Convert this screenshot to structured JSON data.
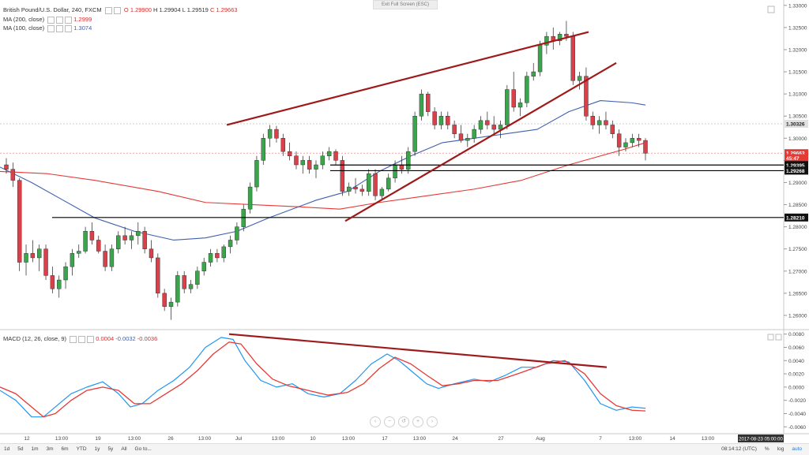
{
  "header": {
    "symbol": "British Pound/U.S. Dollar, 240, FXCM",
    "ohlc": {
      "o": "O 1.29900",
      "h": "H 1.29904",
      "l": "L 1.29519",
      "c": "C 1.29663"
    },
    "exit_fullscreen": "Exit Full Screen (ESC)"
  },
  "indicators": [
    {
      "label": "MA (200, close)",
      "value": "1.2999",
      "color": "#d32f2f"
    },
    {
      "label": "MA (100, close)",
      "value": "1.3074",
      "color": "#3a5fb5"
    }
  ],
  "macd": {
    "label": "MACD (12, 26, close, 9)",
    "values": [
      "0.0004",
      "-0.0032",
      "-0.0036"
    ],
    "colors": [
      "#d32f2f",
      "#3a5fb5",
      "#d32f2f"
    ]
  },
  "price_axis": {
    "ticks": [
      "1.33000",
      "1.32500",
      "1.32000",
      "1.31500",
      "1.31000",
      "1.30500",
      "1.30000",
      "1.29500",
      "1.29000",
      "1.28500",
      "1.28000",
      "1.27500",
      "1.27000",
      "1.26500",
      "1.26000"
    ],
    "badges": [
      {
        "text": "1.30326",
        "value": 1.30326,
        "kind": "light"
      },
      {
        "text": "1.29663",
        "value": 1.29663,
        "kind": "red"
      },
      {
        "text": "45:47",
        "value": 1.2955,
        "kind": "red"
      },
      {
        "text": "1.29395",
        "value": 1.29395,
        "kind": "dark"
      },
      {
        "text": "1.29268",
        "value": 1.29268,
        "kind": "dark"
      },
      {
        "text": "1.28210",
        "value": 1.2821,
        "kind": "dark"
      }
    ]
  },
  "macd_axis": {
    "ticks": [
      "0.0080",
      "0.0060",
      "0.0040",
      "0.0020",
      "0.0000",
      "-0.0020",
      "-0.0040",
      "-0.0060"
    ]
  },
  "time_axis": {
    "labels": [
      {
        "t": "12",
        "x": 34
      },
      {
        "t": "13:00",
        "x": 78
      },
      {
        "t": "19",
        "x": 124
      },
      {
        "t": "13:00",
        "x": 170
      },
      {
        "t": "26",
        "x": 216
      },
      {
        "t": "13:00",
        "x": 259
      },
      {
        "t": "Jul",
        "x": 302
      },
      {
        "t": "13:00",
        "x": 352
      },
      {
        "t": "10",
        "x": 396
      },
      {
        "t": "13:00",
        "x": 441
      },
      {
        "t": "17",
        "x": 487
      },
      {
        "t": "13:00",
        "x": 531
      },
      {
        "t": "24",
        "x": 576
      },
      {
        "t": "27",
        "x": 634
      },
      {
        "t": "Aug",
        "x": 684
      },
      {
        "t": "7",
        "x": 760
      },
      {
        "t": "13:00",
        "x": 804
      },
      {
        "t": "14",
        "x": 851
      },
      {
        "t": "13:00",
        "x": 896
      }
    ],
    "date_badge": "2017-08-23 05:00:00"
  },
  "bottom_bar": {
    "timeframes": [
      "1d",
      "5d",
      "1m",
      "3m",
      "6m",
      "YTD",
      "1y",
      "5y",
      "All",
      "Go to..."
    ],
    "right": [
      "08:14:12 (UTC)",
      "%",
      "log",
      "auto"
    ]
  },
  "chart_data": {
    "type": "candlestick",
    "ylim": [
      1.2575,
      1.3305
    ],
    "macd_ylim": [
      -0.0068,
      0.0082
    ],
    "candles": [
      [
        1.294,
        1.2955,
        1.292,
        1.293
      ],
      [
        1.293,
        1.2945,
        1.289,
        1.2905
      ],
      [
        1.2905,
        1.291,
        1.27,
        1.272
      ],
      [
        1.272,
        1.276,
        1.269,
        1.274
      ],
      [
        1.274,
        1.277,
        1.272,
        1.273
      ],
      [
        1.273,
        1.276,
        1.27,
        1.275
      ],
      [
        1.275,
        1.276,
        1.268,
        1.269
      ],
      [
        1.269,
        1.271,
        1.265,
        1.266
      ],
      [
        1.266,
        1.269,
        1.264,
        1.268
      ],
      [
        1.268,
        1.272,
        1.266,
        1.271
      ],
      [
        1.271,
        1.275,
        1.269,
        1.274
      ],
      [
        1.274,
        1.276,
        1.273,
        1.2745
      ],
      [
        1.2745,
        1.28,
        1.274,
        1.279
      ],
      [
        1.279,
        1.281,
        1.276,
        1.277
      ],
      [
        1.277,
        1.278,
        1.274,
        1.2745
      ],
      [
        1.2745,
        1.276,
        1.27,
        1.271
      ],
      [
        1.271,
        1.276,
        1.27,
        1.275
      ],
      [
        1.275,
        1.279,
        1.274,
        1.278
      ],
      [
        1.278,
        1.28,
        1.276,
        1.277
      ],
      [
        1.277,
        1.279,
        1.275,
        1.278
      ],
      [
        1.278,
        1.281,
        1.276,
        1.279
      ],
      [
        1.279,
        1.28,
        1.274,
        1.275
      ],
      [
        1.275,
        1.277,
        1.272,
        1.273
      ],
      [
        1.273,
        1.274,
        1.264,
        1.265
      ],
      [
        1.265,
        1.266,
        1.261,
        1.262
      ],
      [
        1.262,
        1.264,
        1.259,
        1.263
      ],
      [
        1.263,
        1.27,
        1.262,
        1.269
      ],
      [
        1.269,
        1.27,
        1.265,
        1.266
      ],
      [
        1.266,
        1.268,
        1.265,
        1.267
      ],
      [
        1.267,
        1.271,
        1.266,
        1.27
      ],
      [
        1.27,
        1.273,
        1.269,
        1.272
      ],
      [
        1.272,
        1.275,
        1.271,
        1.274
      ],
      [
        1.274,
        1.275,
        1.272,
        1.273
      ],
      [
        1.273,
        1.276,
        1.272,
        1.2755
      ],
      [
        1.2755,
        1.278,
        1.274,
        1.277
      ],
      [
        1.277,
        1.281,
        1.276,
        1.28
      ],
      [
        1.28,
        1.285,
        1.279,
        1.284
      ],
      [
        1.284,
        1.29,
        1.283,
        1.289
      ],
      [
        1.289,
        1.296,
        1.288,
        1.295
      ],
      [
        1.295,
        1.301,
        1.294,
        1.3
      ],
      [
        1.3,
        1.303,
        1.298,
        1.302
      ],
      [
        1.302,
        1.3028,
        1.299,
        1.3
      ],
      [
        1.3,
        1.301,
        1.296,
        1.297
      ],
      [
        1.297,
        1.299,
        1.295,
        1.296
      ],
      [
        1.296,
        1.297,
        1.293,
        1.294
      ],
      [
        1.294,
        1.296,
        1.292,
        1.295
      ],
      [
        1.295,
        1.296,
        1.292,
        1.293
      ],
      [
        1.293,
        1.295,
        1.291,
        1.294
      ],
      [
        1.294,
        1.297,
        1.293,
        1.296
      ],
      [
        1.296,
        1.298,
        1.295,
        1.297
      ],
      [
        1.297,
        1.2975,
        1.294,
        1.295
      ],
      [
        1.295,
        1.296,
        1.287,
        1.288
      ],
      [
        1.288,
        1.29,
        1.287,
        1.289
      ],
      [
        1.289,
        1.291,
        1.2875,
        1.2885
      ],
      [
        1.2885,
        1.2895,
        1.287,
        1.288
      ],
      [
        1.288,
        1.293,
        1.287,
        1.292
      ],
      [
        1.292,
        1.293,
        1.286,
        1.287
      ],
      [
        1.287,
        1.289,
        1.286,
        1.2885
      ],
      [
        1.2885,
        1.292,
        1.288,
        1.291
      ],
      [
        1.291,
        1.295,
        1.29,
        1.294
      ],
      [
        1.294,
        1.296,
        1.292,
        1.293
      ],
      [
        1.293,
        1.298,
        1.292,
        1.297
      ],
      [
        1.297,
        1.306,
        1.296,
        1.305
      ],
      [
        1.305,
        1.311,
        1.304,
        1.31
      ],
      [
        1.31,
        1.3105,
        1.305,
        1.306
      ],
      [
        1.306,
        1.307,
        1.302,
        1.303
      ],
      [
        1.303,
        1.306,
        1.302,
        1.305
      ],
      [
        1.305,
        1.306,
        1.302,
        1.303
      ],
      [
        1.303,
        1.304,
        1.3,
        1.301
      ],
      [
        1.301,
        1.303,
        1.299,
        1.2995
      ],
      [
        1.2995,
        1.301,
        1.298,
        1.3
      ],
      [
        1.3,
        1.303,
        1.299,
        1.302
      ],
      [
        1.302,
        1.305,
        1.301,
        1.304
      ],
      [
        1.304,
        1.306,
        1.302,
        1.303
      ],
      [
        1.303,
        1.305,
        1.301,
        1.302
      ],
      [
        1.302,
        1.304,
        1.3,
        1.303
      ],
      [
        1.303,
        1.312,
        1.302,
        1.311
      ],
      [
        1.311,
        1.315,
        1.306,
        1.307
      ],
      [
        1.307,
        1.309,
        1.305,
        1.308
      ],
      [
        1.308,
        1.315,
        1.307,
        1.314
      ],
      [
        1.314,
        1.317,
        1.313,
        1.315
      ],
      [
        1.315,
        1.322,
        1.314,
        1.321
      ],
      [
        1.321,
        1.324,
        1.319,
        1.323
      ],
      [
        1.323,
        1.325,
        1.32,
        1.322
      ],
      [
        1.322,
        1.324,
        1.321,
        1.3235
      ],
      [
        1.3235,
        1.3265,
        1.322,
        1.323
      ],
      [
        1.323,
        1.324,
        1.312,
        1.313
      ],
      [
        1.313,
        1.315,
        1.311,
        1.314
      ],
      [
        1.314,
        1.316,
        1.304,
        1.305
      ],
      [
        1.305,
        1.306,
        1.302,
        1.303
      ],
      [
        1.303,
        1.305,
        1.301,
        1.304
      ],
      [
        1.304,
        1.306,
        1.302,
        1.303
      ],
      [
        1.303,
        1.304,
        1.3,
        1.301
      ],
      [
        1.301,
        1.302,
        1.296,
        1.298
      ],
      [
        1.298,
        1.3,
        1.297,
        1.299
      ],
      [
        1.299,
        1.301,
        1.298,
        1.3
      ],
      [
        1.3,
        1.301,
        1.298,
        1.2995
      ],
      [
        1.2995,
        1.3,
        1.295,
        1.2966
      ]
    ],
    "candle_x_start": 8,
    "candle_x_end": 817,
    "ma200": [
      [
        0,
        1.2925
      ],
      [
        60,
        1.292
      ],
      [
        120,
        1.2905
      ],
      [
        200,
        1.288
      ],
      [
        260,
        1.2855
      ],
      [
        320,
        1.285
      ],
      [
        380,
        1.2845
      ],
      [
        430,
        1.284
      ],
      [
        480,
        1.2855
      ],
      [
        540,
        1.287
      ],
      [
        600,
        1.2885
      ],
      [
        660,
        1.2905
      ],
      [
        720,
        1.294
      ],
      [
        790,
        1.2975
      ],
      [
        817,
        1.299
      ]
    ],
    "ma100": [
      [
        0,
        1.2935
      ],
      [
        40,
        1.29
      ],
      [
        80,
        1.286
      ],
      [
        120,
        1.282
      ],
      [
        170,
        1.279
      ],
      [
        220,
        1.277
      ],
      [
        260,
        1.2775
      ],
      [
        300,
        1.279
      ],
      [
        340,
        1.282
      ],
      [
        400,
        1.286
      ],
      [
        440,
        1.288
      ],
      [
        480,
        1.2925
      ],
      [
        520,
        1.296
      ],
      [
        560,
        1.299
      ],
      [
        600,
        1.3
      ],
      [
        640,
        1.301
      ],
      [
        680,
        1.302
      ],
      [
        720,
        1.306
      ],
      [
        760,
        1.3085
      ],
      [
        800,
        1.308
      ],
      [
        817,
        1.3075
      ]
    ],
    "hlines": [
      {
        "price": 1.29395,
        "x1": 418
      },
      {
        "price": 1.29268,
        "x1": 418
      },
      {
        "price": 1.2821,
        "x1": 66
      }
    ],
    "trendlines": [
      {
        "p1": [
          287,
          1.303
        ],
        "p2": [
          745,
          1.324
        ]
      },
      {
        "p1": [
          437,
          1.2813
        ],
        "p2": [
          780,
          1.317
        ]
      }
    ],
    "macd_line": [
      [
        0,
        -0.0005
      ],
      [
        20,
        -0.002
      ],
      [
        40,
        -0.0045
      ],
      [
        55,
        -0.0045
      ],
      [
        70,
        -0.003
      ],
      [
        90,
        -0.001
      ],
      [
        110,
        0.0
      ],
      [
        130,
        0.0008
      ],
      [
        150,
        -0.001
      ],
      [
        165,
        -0.003
      ],
      [
        180,
        -0.0025
      ],
      [
        200,
        -0.0005
      ],
      [
        220,
        0.001
      ],
      [
        240,
        0.003
      ],
      [
        260,
        0.006
      ],
      [
        280,
        0.0075
      ],
      [
        295,
        0.0072
      ],
      [
        310,
        0.004
      ],
      [
        330,
        0.001
      ],
      [
        350,
        0.0
      ],
      [
        370,
        0.0005
      ],
      [
        390,
        -0.001
      ],
      [
        410,
        -0.0015
      ],
      [
        430,
        -0.001
      ],
      [
        450,
        0.001
      ],
      [
        470,
        0.0035
      ],
      [
        490,
        0.005
      ],
      [
        505,
        0.004
      ],
      [
        520,
        0.0025
      ],
      [
        540,
        0.0005
      ],
      [
        555,
        -0.0002
      ],
      [
        575,
        0.0005
      ],
      [
        600,
        0.0012
      ],
      [
        620,
        0.0008
      ],
      [
        640,
        0.0018
      ],
      [
        660,
        0.003
      ],
      [
        680,
        0.003
      ],
      [
        700,
        0.004
      ],
      [
        720,
        0.0038
      ],
      [
        740,
        0.001
      ],
      [
        760,
        -0.0025
      ],
      [
        780,
        -0.0035
      ],
      [
        800,
        -0.003
      ],
      [
        817,
        -0.0032
      ]
    ],
    "signal_line": [
      [
        0,
        0.0
      ],
      [
        20,
        -0.001
      ],
      [
        40,
        -0.003
      ],
      [
        55,
        -0.0045
      ],
      [
        70,
        -0.004
      ],
      [
        90,
        -0.002
      ],
      [
        110,
        -0.0005
      ],
      [
        130,
        0.0
      ],
      [
        150,
        -0.0005
      ],
      [
        170,
        -0.0025
      ],
      [
        190,
        -0.0025
      ],
      [
        210,
        -0.001
      ],
      [
        230,
        0.0005
      ],
      [
        250,
        0.0025
      ],
      [
        270,
        0.005
      ],
      [
        290,
        0.0068
      ],
      [
        305,
        0.0065
      ],
      [
        325,
        0.0035
      ],
      [
        345,
        0.0012
      ],
      [
        365,
        0.0002
      ],
      [
        390,
        -0.0005
      ],
      [
        415,
        -0.0012
      ],
      [
        440,
        -0.0008
      ],
      [
        460,
        0.0005
      ],
      [
        480,
        0.0028
      ],
      [
        500,
        0.0045
      ],
      [
        520,
        0.0035
      ],
      [
        540,
        0.0018
      ],
      [
        560,
        0.0002
      ],
      [
        580,
        0.0005
      ],
      [
        600,
        0.001
      ],
      [
        630,
        0.001
      ],
      [
        660,
        0.0022
      ],
      [
        690,
        0.0035
      ],
      [
        715,
        0.004
      ],
      [
        740,
        0.002
      ],
      [
        760,
        -0.001
      ],
      [
        780,
        -0.0028
      ],
      [
        800,
        -0.0035
      ],
      [
        817,
        -0.0036
      ]
    ],
    "macd_trendline": {
      "p1": [
        290,
        0.008
      ],
      "p2": [
        768,
        0.003
      ]
    }
  }
}
